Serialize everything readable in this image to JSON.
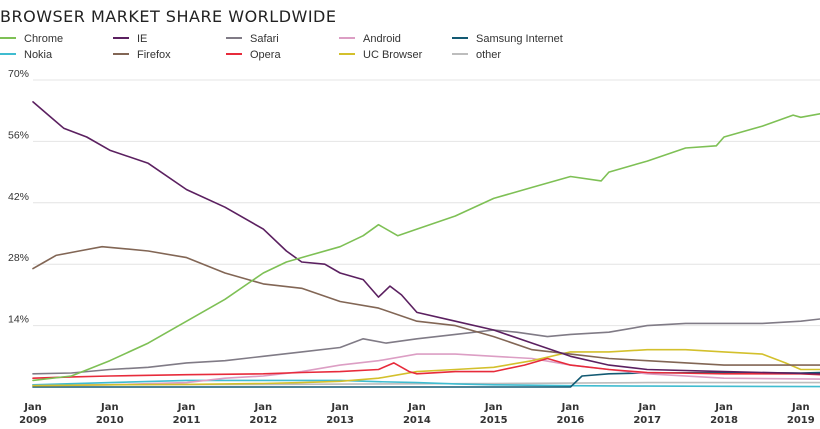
{
  "chart_data": {
    "type": "line",
    "title": "BROWSER MARKET SHARE WORLDWIDE",
    "xlabel": "",
    "ylabel": "",
    "ylim": [
      0,
      70
    ],
    "y_ticks": [
      14,
      28,
      42,
      56,
      70
    ],
    "y_tick_labels": [
      "14%",
      "28%",
      "42%",
      "56%",
      "70%"
    ],
    "x_range": [
      2009,
      2019.25
    ],
    "x_ticks": [
      2009,
      2010,
      2011,
      2012,
      2013,
      2014,
      2015,
      2016,
      2017,
      2018,
      2019
    ],
    "x_tick_labels": [
      {
        "top": "Jan",
        "bottom": "2009"
      },
      {
        "top": "Jan",
        "bottom": "2010"
      },
      {
        "top": "Jan",
        "bottom": "2011"
      },
      {
        "top": "Jan",
        "bottom": "2012"
      },
      {
        "top": "Jan",
        "bottom": "2013"
      },
      {
        "top": "Jan",
        "bottom": "2014"
      },
      {
        "top": "Jan",
        "bottom": "2015"
      },
      {
        "top": "Jan",
        "bottom": "2016"
      },
      {
        "top": "Jan",
        "bottom": "2017"
      },
      {
        "top": "Jan",
        "bottom": "2018"
      },
      {
        "top": "Jan",
        "bottom": "2019"
      }
    ],
    "legend_position": "top",
    "grid": true,
    "series": [
      {
        "name": "Chrome",
        "color": "#7ec055",
        "points": [
          [
            2009.0,
            1.5
          ],
          [
            2009.5,
            2.5
          ],
          [
            2010.0,
            6
          ],
          [
            2010.5,
            10
          ],
          [
            2011.0,
            15
          ],
          [
            2011.5,
            20
          ],
          [
            2012.0,
            26
          ],
          [
            2012.3,
            28.5
          ],
          [
            2012.6,
            30
          ],
          [
            2013.0,
            32
          ],
          [
            2013.3,
            34.5
          ],
          [
            2013.5,
            37
          ],
          [
            2013.75,
            34.5
          ],
          [
            2014.0,
            36
          ],
          [
            2014.5,
            39
          ],
          [
            2015.0,
            43
          ],
          [
            2015.5,
            45.5
          ],
          [
            2016.0,
            48
          ],
          [
            2016.4,
            47
          ],
          [
            2016.5,
            49
          ],
          [
            2017.0,
            51.5
          ],
          [
            2017.5,
            54.5
          ],
          [
            2017.9,
            55
          ],
          [
            2018.0,
            57
          ],
          [
            2018.5,
            59.5
          ],
          [
            2018.9,
            62
          ],
          [
            2019.0,
            61.5
          ],
          [
            2019.25,
            62.3
          ]
        ]
      },
      {
        "name": "IE",
        "color": "#5b2060",
        "points": [
          [
            2009.0,
            65
          ],
          [
            2009.2,
            62
          ],
          [
            2009.4,
            59
          ],
          [
            2009.7,
            57
          ],
          [
            2010.0,
            54
          ],
          [
            2010.5,
            51
          ],
          [
            2011.0,
            45
          ],
          [
            2011.5,
            41
          ],
          [
            2012.0,
            36
          ],
          [
            2012.3,
            31
          ],
          [
            2012.5,
            28.5
          ],
          [
            2012.8,
            28
          ],
          [
            2013.0,
            26
          ],
          [
            2013.3,
            24.5
          ],
          [
            2013.5,
            20.5
          ],
          [
            2013.65,
            23
          ],
          [
            2013.8,
            21
          ],
          [
            2014.0,
            17
          ],
          [
            2014.5,
            15
          ],
          [
            2015.0,
            13
          ],
          [
            2015.5,
            10
          ],
          [
            2016.0,
            7
          ],
          [
            2016.5,
            5
          ],
          [
            2017.0,
            4
          ],
          [
            2018.0,
            3.5
          ],
          [
            2019.25,
            3
          ]
        ]
      },
      {
        "name": "Safari",
        "color": "#807b86",
        "points": [
          [
            2009.0,
            3
          ],
          [
            2009.5,
            3.2
          ],
          [
            2010.0,
            4
          ],
          [
            2010.5,
            4.5
          ],
          [
            2011.0,
            5.5
          ],
          [
            2011.5,
            6
          ],
          [
            2012.0,
            7
          ],
          [
            2012.5,
            8
          ],
          [
            2013.0,
            9
          ],
          [
            2013.3,
            11
          ],
          [
            2013.6,
            10
          ],
          [
            2014.0,
            11
          ],
          [
            2014.5,
            12
          ],
          [
            2015.0,
            13
          ],
          [
            2015.3,
            12.5
          ],
          [
            2015.7,
            11.5
          ],
          [
            2016.0,
            12
          ],
          [
            2016.5,
            12.5
          ],
          [
            2017.0,
            14
          ],
          [
            2017.5,
            14.5
          ],
          [
            2018.0,
            14.5
          ],
          [
            2018.5,
            14.5
          ],
          [
            2019.0,
            15
          ],
          [
            2019.25,
            15.5
          ]
        ]
      },
      {
        "name": "Android",
        "color": "#dc9ec4",
        "points": [
          [
            2009.0,
            0.3
          ],
          [
            2010.0,
            0.5
          ],
          [
            2011.0,
            1
          ],
          [
            2011.5,
            2
          ],
          [
            2012.0,
            2.5
          ],
          [
            2012.5,
            3.5
          ],
          [
            2013.0,
            5
          ],
          [
            2013.5,
            6
          ],
          [
            2014.0,
            7.5
          ],
          [
            2014.5,
            7.5
          ],
          [
            2015.0,
            7
          ],
          [
            2015.5,
            6.5
          ],
          [
            2016.0,
            5
          ],
          [
            2016.5,
            4
          ],
          [
            2017.0,
            3
          ],
          [
            2018.0,
            2
          ],
          [
            2019.25,
            1.8
          ]
        ]
      },
      {
        "name": "Samsung Internet",
        "color": "#135a73",
        "points": [
          [
            2009.0,
            0
          ],
          [
            2016.0,
            0
          ],
          [
            2016.15,
            2.5
          ],
          [
            2016.5,
            3
          ],
          [
            2017.0,
            3.2
          ],
          [
            2018.0,
            3.3
          ],
          [
            2019.0,
            3.2
          ],
          [
            2019.25,
            3.3
          ]
        ]
      },
      {
        "name": "Nokia",
        "color": "#3fbcd0",
        "points": [
          [
            2009.0,
            0.5
          ],
          [
            2010.0,
            1
          ],
          [
            2011.0,
            1.5
          ],
          [
            2012.0,
            1.5
          ],
          [
            2013.0,
            1.5
          ],
          [
            2013.5,
            1.2
          ],
          [
            2014.0,
            1
          ],
          [
            2014.5,
            0.7
          ],
          [
            2015.0,
            0.5
          ],
          [
            2016.0,
            0.3
          ],
          [
            2017.0,
            0.2
          ],
          [
            2019.25,
            0.1
          ]
        ]
      },
      {
        "name": "Firefox",
        "color": "#826655",
        "points": [
          [
            2009.0,
            27
          ],
          [
            2009.15,
            28.5
          ],
          [
            2009.3,
            30
          ],
          [
            2009.6,
            31
          ],
          [
            2009.9,
            32
          ],
          [
            2010.2,
            31.5
          ],
          [
            2010.5,
            31
          ],
          [
            2011.0,
            29.5
          ],
          [
            2011.5,
            26
          ],
          [
            2012.0,
            23.5
          ],
          [
            2012.5,
            22.5
          ],
          [
            2013.0,
            19.5
          ],
          [
            2013.5,
            18
          ],
          [
            2014.0,
            15
          ],
          [
            2014.5,
            14
          ],
          [
            2015.0,
            11.5
          ],
          [
            2015.5,
            8.5
          ],
          [
            2016.0,
            7.5
          ],
          [
            2016.5,
            6.5
          ],
          [
            2017.0,
            6
          ],
          [
            2018.0,
            5
          ],
          [
            2019.0,
            5
          ],
          [
            2019.25,
            5
          ]
        ]
      },
      {
        "name": "Opera",
        "color": "#e72b3b",
        "points": [
          [
            2009.0,
            2
          ],
          [
            2009.5,
            2.3
          ],
          [
            2010.0,
            2.5
          ],
          [
            2011.0,
            2.8
          ],
          [
            2012.0,
            3
          ],
          [
            2012.5,
            3.3
          ],
          [
            2013.0,
            3.5
          ],
          [
            2013.5,
            4
          ],
          [
            2013.7,
            5.5
          ],
          [
            2013.9,
            3.5
          ],
          [
            2014.0,
            3
          ],
          [
            2014.5,
            3.5
          ],
          [
            2015.0,
            3.5
          ],
          [
            2015.4,
            5
          ],
          [
            2015.7,
            6.5
          ],
          [
            2016.0,
            5
          ],
          [
            2016.5,
            4
          ],
          [
            2017.0,
            3.3
          ],
          [
            2018.0,
            3
          ],
          [
            2019.0,
            3
          ],
          [
            2019.25,
            2.8
          ]
        ]
      },
      {
        "name": "UC Browser",
        "color": "#d3c02c",
        "points": [
          [
            2009.0,
            0.3
          ],
          [
            2010.0,
            0.5
          ],
          [
            2011.0,
            0.6
          ],
          [
            2012.0,
            0.8
          ],
          [
            2012.5,
            1
          ],
          [
            2013.0,
            1.3
          ],
          [
            2013.5,
            2
          ],
          [
            2014.0,
            3.5
          ],
          [
            2014.5,
            4
          ],
          [
            2015.0,
            4.5
          ],
          [
            2015.5,
            6
          ],
          [
            2016.0,
            8
          ],
          [
            2016.5,
            8
          ],
          [
            2017.0,
            8.5
          ],
          [
            2017.5,
            8.5
          ],
          [
            2018.0,
            8
          ],
          [
            2018.5,
            7.5
          ],
          [
            2018.8,
            5.5
          ],
          [
            2019.0,
            4
          ],
          [
            2019.25,
            4
          ]
        ]
      },
      {
        "name": "other",
        "color": "#bdbdbd",
        "points": [
          [
            2009.0,
            0.5
          ],
          [
            2012.0,
            0.6
          ],
          [
            2015.0,
            0.8
          ],
          [
            2017.0,
            1
          ],
          [
            2019.25,
            1
          ]
        ]
      }
    ]
  }
}
